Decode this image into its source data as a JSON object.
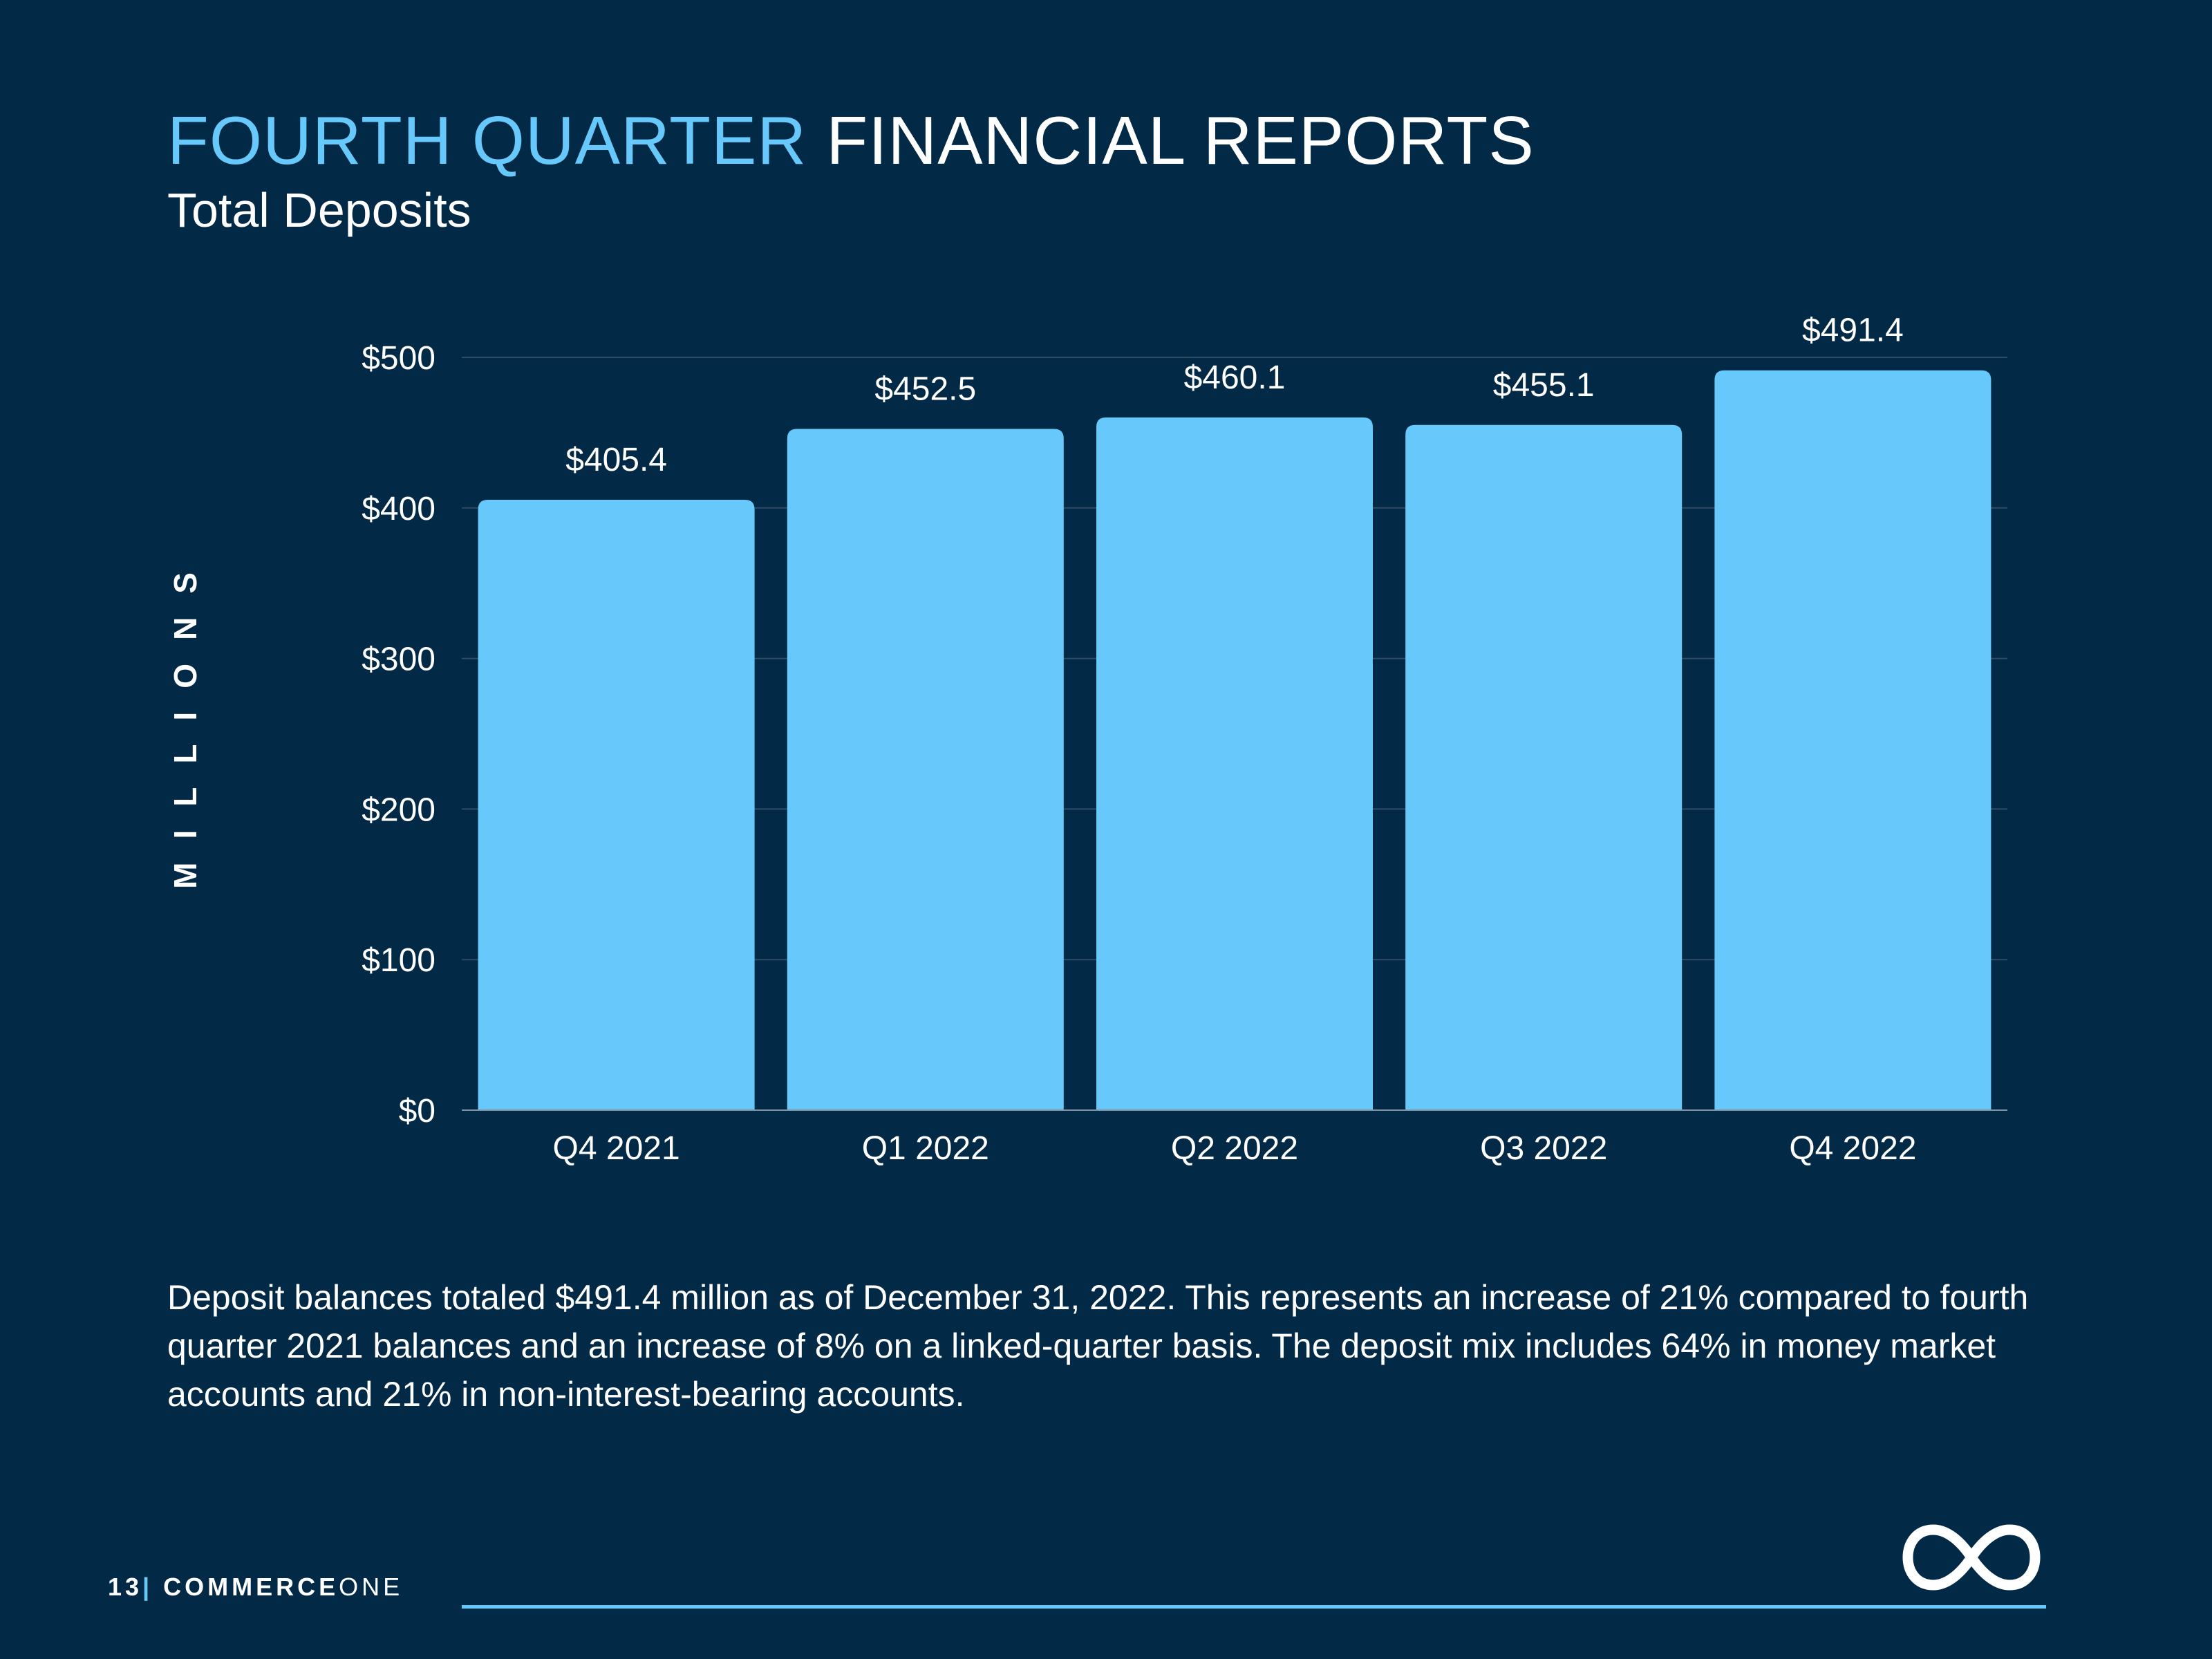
{
  "header": {
    "title_accent": "FOURTH QUARTER",
    "title_rest": "FINANCIAL REPORTS",
    "subtitle": "Total Deposits"
  },
  "description": "Deposit balances totaled $491.4 million as of December 31, 2022. This represents an increase of 21% compared to fourth quarter 2021 balances and an increase of 8% on a linked-quarter basis. The deposit mix includes 64% in money market accounts and 21% in non-interest-bearing accounts.",
  "footer": {
    "page_number": "13",
    "separator": "|",
    "brand_bold": "COMMERCE",
    "brand_light": "ONE",
    "logo_icon": "infinity-icon"
  },
  "colors": {
    "background": "#022a47",
    "accent": "#66c8fb",
    "bar": "#66c8fb",
    "text": "#ffffff",
    "grid": "#2d4b63"
  },
  "chart_data": {
    "type": "bar",
    "ylabel": "MILLIONS",
    "categories": [
      "Q4 2021",
      "Q1 2022",
      "Q2 2022",
      "Q3 2022",
      "Q4 2022"
    ],
    "values": [
      405.4,
      452.5,
      460.1,
      455.1,
      491.4
    ],
    "data_labels": [
      "$405.4",
      "$452.5",
      "$460.1",
      "$455.1",
      "$491.4"
    ],
    "yticks": [
      0,
      100,
      200,
      300,
      400,
      500
    ],
    "ytick_labels": [
      "$0",
      "$100",
      "$200",
      "$300",
      "$400",
      "$500"
    ],
    "ylim": [
      0,
      500
    ],
    "grid": true,
    "legend": "none"
  }
}
